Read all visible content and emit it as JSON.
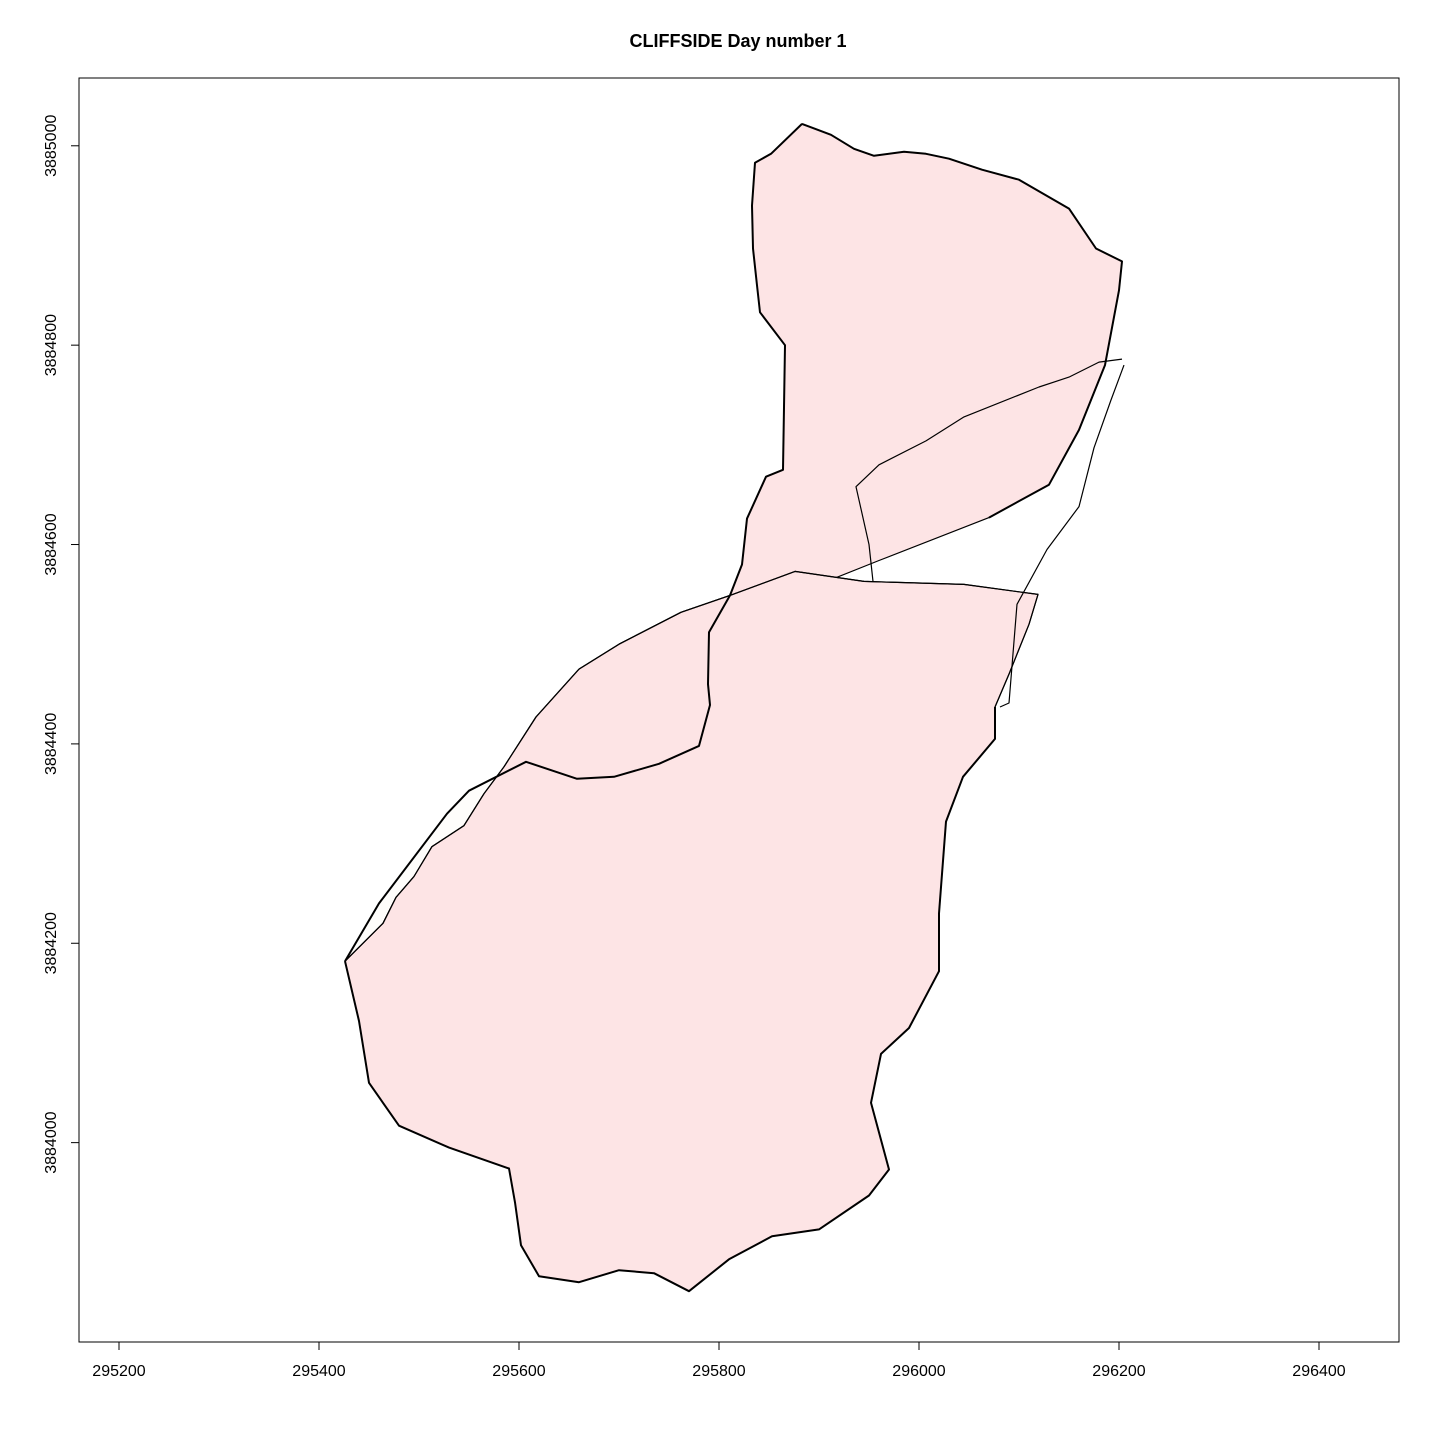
{
  "title": "CLIFFSIDE   Day number 1",
  "chart_data": {
    "type": "map",
    "title": "CLIFFSIDE   Day number 1",
    "xlabel": "",
    "ylabel": "",
    "xlim": [
      295160,
      296480
    ],
    "ylim": [
      3883800,
      3885068
    ],
    "x_ticks": [
      295200,
      295400,
      295600,
      295800,
      296000,
      296200,
      296400
    ],
    "y_ticks": [
      3884000,
      3884200,
      3884400,
      3884600,
      3884800,
      3885000
    ],
    "x_tick_labels": [
      "295200",
      "295400",
      "295600",
      "295800",
      "296000",
      "296200",
      "296400"
    ],
    "y_tick_labels": [
      "3884000",
      "3884200",
      "3884400",
      "3884600",
      "3884800",
      "3885000"
    ],
    "grid": false,
    "fill_colors": {
      "pink": "#fde4e5",
      "white": "#fefdfb"
    },
    "polygons": [
      {
        "id": "north-area",
        "fill": "pink",
        "points": [
          [
            295883,
            3885022
          ],
          [
            295912,
            3885011
          ],
          [
            295935,
            3884997
          ],
          [
            295955,
            3884990
          ],
          [
            295985,
            3884994
          ],
          [
            296007,
            3884992
          ],
          [
            296030,
            3884987
          ],
          [
            296063,
            3884976
          ],
          [
            296100,
            3884966
          ],
          [
            296150,
            3884937
          ],
          [
            296177,
            3884897
          ],
          [
            296203,
            3884884
          ],
          [
            296200,
            3884855
          ],
          [
            296186,
            3884780
          ],
          [
            296160,
            3884715
          ],
          [
            296130,
            3884660
          ],
          [
            296070,
            3884627
          ],
          [
            295960,
            3884584
          ],
          [
            295900,
            3884560
          ],
          [
            295811,
            3884549
          ],
          [
            295823,
            3884580
          ],
          [
            295828,
            3884626
          ],
          [
            295847,
            3884668
          ],
          [
            295864,
            3884675
          ],
          [
            295866,
            3884800
          ],
          [
            295841,
            3884833
          ],
          [
            295838,
            3884860
          ],
          [
            295834,
            3884897
          ],
          [
            295833,
            3884940
          ],
          [
            295836,
            3884983
          ],
          [
            295852,
            3884992
          ]
        ]
      },
      {
        "id": "south-west-strip",
        "fill": "white",
        "points": [
          [
            295811,
            3884549
          ],
          [
            295762,
            3884532
          ],
          [
            295700,
            3884500
          ],
          [
            295660,
            3884475
          ],
          [
            295617,
            3884427
          ],
          [
            295585,
            3884377
          ],
          [
            295565,
            3884350
          ],
          [
            295545,
            3884318
          ],
          [
            295513,
            3884297
          ],
          [
            295495,
            3884267
          ],
          [
            295477,
            3884246
          ],
          [
            295464,
            3884220
          ],
          [
            295426,
            3884182
          ],
          [
            295460,
            3884240
          ],
          [
            295528,
            3884330
          ],
          [
            295550,
            3884353
          ],
          [
            295607,
            3884382
          ],
          [
            295658,
            3884365
          ],
          [
            295695,
            3884367
          ],
          [
            295740,
            3884380
          ],
          [
            295780,
            3884398
          ],
          [
            295791,
            3884439
          ],
          [
            295789,
            3884460
          ],
          [
            295790,
            3884512
          ]
        ]
      },
      {
        "id": "main-area",
        "fill": "pink",
        "points": [
          [
            295876,
            3884573
          ],
          [
            295945,
            3884563
          ],
          [
            296045,
            3884560
          ],
          [
            296119,
            3884550
          ],
          [
            296110,
            3884520
          ],
          [
            296090,
            3884470
          ],
          [
            296076,
            3884437
          ],
          [
            296076,
            3884405
          ],
          [
            296044,
            3884367
          ],
          [
            296027,
            3884322
          ],
          [
            296020,
            3884230
          ],
          [
            296020,
            3884172
          ],
          [
            295990,
            3884115
          ],
          [
            295962,
            3884089
          ],
          [
            295952,
            3884040
          ],
          [
            295970,
            3883973
          ],
          [
            295950,
            3883947
          ],
          [
            295900,
            3883913
          ],
          [
            295853,
            3883906
          ],
          [
            295810,
            3883883
          ],
          [
            295770,
            3883851
          ],
          [
            295735,
            3883869
          ],
          [
            295700,
            3883872
          ],
          [
            295660,
            3883860
          ],
          [
            295620,
            3883866
          ],
          [
            295602,
            3883897
          ],
          [
            295596,
            3883940
          ],
          [
            295590,
            3883974
          ],
          [
            295530,
            3883995
          ],
          [
            295480,
            3884017
          ],
          [
            295450,
            3884060
          ],
          [
            295440,
            3884122
          ],
          [
            295426,
            3884182
          ],
          [
            295464,
            3884220
          ],
          [
            295477,
            3884246
          ],
          [
            295495,
            3884267
          ],
          [
            295513,
            3884297
          ],
          [
            295545,
            3884318
          ],
          [
            295565,
            3884350
          ],
          [
            295585,
            3884377
          ],
          [
            295617,
            3884427
          ],
          [
            295660,
            3884475
          ],
          [
            295700,
            3884500
          ],
          [
            295762,
            3884532
          ],
          [
            295811,
            3884549
          ]
        ]
      }
    ],
    "lines": [
      {
        "id": "outer-boundary",
        "weight": "heavy",
        "points": [
          [
            295883,
            3885022
          ],
          [
            295912,
            3885011
          ],
          [
            295935,
            3884997
          ],
          [
            295955,
            3884990
          ],
          [
            295985,
            3884994
          ],
          [
            296007,
            3884992
          ],
          [
            296030,
            3884987
          ],
          [
            296063,
            3884976
          ],
          [
            296100,
            3884966
          ],
          [
            296150,
            3884937
          ],
          [
            296177,
            3884897
          ],
          [
            296203,
            3884884
          ],
          [
            296200,
            3884855
          ],
          [
            296186,
            3884780
          ],
          [
            296160,
            3884715
          ],
          [
            296130,
            3884660
          ],
          [
            296070,
            3884627
          ]
        ]
      },
      {
        "id": "west-cliff-edge",
        "weight": "heavy",
        "points": [
          [
            295883,
            3885022
          ],
          [
            295852,
            3884992
          ],
          [
            295836,
            3884983
          ],
          [
            295833,
            3884940
          ],
          [
            295834,
            3884897
          ],
          [
            295838,
            3884860
          ],
          [
            295841,
            3884833
          ],
          [
            295866,
            3884800
          ],
          [
            295864,
            3884675
          ],
          [
            295847,
            3884668
          ],
          [
            295828,
            3884626
          ],
          [
            295823,
            3884580
          ],
          [
            295811,
            3884549
          ]
        ]
      },
      {
        "id": "inner-divider-north",
        "weight": "thin",
        "points": [
          [
            296203,
            3884786
          ],
          [
            296180,
            3884783
          ],
          [
            296150,
            3884768
          ],
          [
            296120,
            3884758
          ],
          [
            296045,
            3884728
          ],
          [
            296007,
            3884704
          ],
          [
            295960,
            3884680
          ],
          [
            295937,
            3884658
          ],
          [
            295950,
            3884600
          ],
          [
            295954,
            3884563
          ]
        ]
      },
      {
        "id": "inner-divider-east",
        "weight": "thin",
        "points": [
          [
            296205,
            3884780
          ],
          [
            296192,
            3884745
          ],
          [
            296175,
            3884697
          ],
          [
            296160,
            3884638
          ],
          [
            296128,
            3884595
          ],
          [
            296098,
            3884540
          ],
          [
            296090,
            3884441
          ],
          [
            296081,
            3884437
          ]
        ]
      },
      {
        "id": "inner-divider-south",
        "weight": "thin",
        "points": [
          [
            295811,
            3884549
          ],
          [
            295876,
            3884573
          ],
          [
            295945,
            3884563
          ],
          [
            296045,
            3884560
          ],
          [
            296119,
            3884550
          ],
          [
            296110,
            3884520
          ],
          [
            296090,
            3884470
          ],
          [
            296076,
            3884437
          ]
        ]
      },
      {
        "id": "south-west-boundary",
        "weight": "heavy",
        "points": [
          [
            295811,
            3884549
          ],
          [
            295790,
            3884512
          ],
          [
            295789,
            3884460
          ],
          [
            295791,
            3884439
          ],
          [
            295780,
            3884398
          ],
          [
            295740,
            3884380
          ],
          [
            295695,
            3884367
          ],
          [
            295658,
            3884365
          ],
          [
            295607,
            3884382
          ],
          [
            295550,
            3884353
          ],
          [
            295528,
            3884330
          ],
          [
            295460,
            3884240
          ],
          [
            295426,
            3884182
          ]
        ]
      },
      {
        "id": "outer-west-shore",
        "weight": "thin",
        "points": [
          [
            295811,
            3884549
          ],
          [
            295762,
            3884532
          ],
          [
            295700,
            3884500
          ],
          [
            295660,
            3884475
          ],
          [
            295617,
            3884427
          ],
          [
            295585,
            3884377
          ],
          [
            295565,
            3884350
          ],
          [
            295545,
            3884318
          ],
          [
            295513,
            3884297
          ],
          [
            295495,
            3884267
          ],
          [
            295477,
            3884246
          ],
          [
            295464,
            3884220
          ],
          [
            295426,
            3884182
          ]
        ]
      },
      {
        "id": "south-boundary",
        "weight": "heavy",
        "points": [
          [
            296076,
            3884437
          ],
          [
            296076,
            3884405
          ],
          [
            296044,
            3884367
          ],
          [
            296027,
            3884322
          ],
          [
            296020,
            3884230
          ],
          [
            296020,
            3884172
          ],
          [
            295990,
            3884115
          ],
          [
            295962,
            3884089
          ],
          [
            295952,
            3884040
          ],
          [
            295970,
            3883973
          ],
          [
            295950,
            3883947
          ],
          [
            295900,
            3883913
          ],
          [
            295853,
            3883906
          ],
          [
            295810,
            3883883
          ],
          [
            295770,
            3883851
          ],
          [
            295735,
            3883869
          ],
          [
            295700,
            3883872
          ],
          [
            295660,
            3883860
          ],
          [
            295620,
            3883866
          ],
          [
            295602,
            3883897
          ],
          [
            295596,
            3883940
          ],
          [
            295590,
            3883974
          ],
          [
            295530,
            3883995
          ],
          [
            295480,
            3884017
          ],
          [
            295450,
            3884060
          ],
          [
            295440,
            3884122
          ],
          [
            295426,
            3884182
          ]
        ]
      }
    ]
  }
}
